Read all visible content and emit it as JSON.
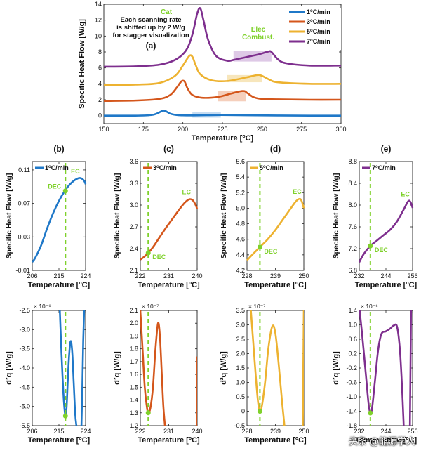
{
  "colors": {
    "blue": "#1f78c8",
    "red": "#d4561b",
    "yellow": "#edb230",
    "purple": "#7e2f8e",
    "green": "#7fd12b",
    "blue_fill": "#bcd6ef",
    "red_fill": "#f3c7b0",
    "yellow_fill": "#f6e2b0",
    "purple_fill": "#d8c0e2"
  },
  "watermark": "头条 @能源学人",
  "chart_data": [
    {
      "id": "a",
      "type": "line",
      "panel_label": "(a)",
      "xlabel": "Temperature [°C]",
      "ylabel": "Specific Heat Flow [W/g]",
      "xlim": [
        150,
        300
      ],
      "ylim": [
        -1,
        14
      ],
      "xticks": [
        150,
        175,
        200,
        225,
        250,
        275,
        300
      ],
      "yticks": [
        0,
        2,
        4,
        6,
        8,
        10,
        12,
        14
      ],
      "note": "Each scanning rate\nis shifted up by 2 W/g\nfor stagger visualization",
      "annotations": [
        "Cat",
        "Elec\nCombust."
      ],
      "legend": [
        "1°C/min",
        "3°C/min",
        "5°C/min",
        "7°C/min"
      ],
      "shaded_regions": [
        {
          "series": "1°C/min",
          "x": [
            206,
            224
          ],
          "y": [
            -0.25,
            0.45
          ]
        },
        {
          "series": "3°C/min",
          "x": [
            222,
            240
          ],
          "y": [
            1.8,
            3.1
          ]
        },
        {
          "series": "5°C/min",
          "x": [
            228,
            250
          ],
          "y": [
            4.2,
            5.1
          ]
        },
        {
          "series": "7°C/min",
          "x": [
            232,
            256
          ],
          "y": [
            6.8,
            8.1
          ]
        }
      ],
      "series": [
        {
          "name": "1°C/min",
          "x": [
            150,
            170,
            180,
            184,
            187,
            189,
            192,
            196,
            200,
            206,
            215,
            224,
            240,
            260,
            280,
            300
          ],
          "y": [
            0.0,
            0.0,
            0.08,
            0.3,
            0.6,
            0.58,
            0.25,
            0.08,
            0.04,
            0.03,
            0.06,
            0.08,
            0.05,
            0.02,
            0.0,
            0.0
          ]
        },
        {
          "name": "3°C/min",
          "x": [
            150,
            170,
            185,
            192,
            196,
            199,
            201,
            203,
            206,
            212,
            222,
            230,
            236,
            239,
            241,
            245,
            250,
            260,
            280,
            300
          ],
          "y": [
            1.85,
            1.9,
            2.1,
            2.6,
            3.5,
            4.3,
            4.3,
            3.4,
            2.6,
            2.25,
            2.35,
            2.75,
            3.05,
            3.08,
            2.8,
            2.3,
            2.1,
            2.05,
            2.0,
            2.0
          ]
        },
        {
          "name": "5°C/min",
          "x": [
            150,
            170,
            185,
            195,
            200,
            204,
            206,
            208,
            211,
            218,
            228,
            240,
            247,
            250,
            255,
            260,
            280,
            300
          ],
          "y": [
            3.85,
            3.9,
            4.1,
            5.0,
            6.3,
            7.5,
            7.4,
            6.4,
            5.2,
            4.45,
            4.35,
            4.8,
            5.1,
            5.0,
            4.5,
            4.2,
            4.0,
            4.0
          ]
        },
        {
          "name": "7°C/min",
          "x": [
            150,
            170,
            185,
            195,
            202,
            206,
            209,
            211,
            213,
            216,
            221,
            228,
            232,
            240,
            248,
            254,
            256,
            260,
            265,
            280,
            300
          ],
          "y": [
            6.15,
            6.2,
            6.4,
            7.0,
            8.2,
            10.2,
            12.8,
            13.5,
            12.0,
            9.5,
            7.5,
            6.9,
            7.0,
            7.35,
            7.7,
            8.05,
            8.0,
            7.1,
            6.6,
            6.3,
            6.3
          ]
        }
      ]
    },
    {
      "id": "b",
      "type": "line",
      "panel_label": "(b)",
      "xlabel": "Temperature [°C]",
      "ylabel": "Specific Heat Flow [W/g]",
      "xlim": [
        206,
        224
      ],
      "ylim": [
        -0.01,
        0.12
      ],
      "xticks": [
        206,
        215,
        224
      ],
      "yticks": [
        -0.01,
        0.03,
        0.07,
        0.11
      ],
      "legend": [
        "1°C/min"
      ],
      "dec_x": 217.2,
      "labels": {
        "dec": "DEC",
        "ec": "EC"
      },
      "series": [
        {
          "name": "1°C/min",
          "x": [
            206,
            207,
            209,
            211,
            213,
            215,
            217,
            218.5,
            220,
            221.5,
            222.5,
            223.5,
            224
          ],
          "y": [
            0.0,
            0.005,
            0.02,
            0.04,
            0.058,
            0.073,
            0.085,
            0.092,
            0.097,
            0.1,
            0.1,
            0.097,
            0.093
          ]
        }
      ],
      "dec_y": 0.085
    },
    {
      "id": "c",
      "type": "line",
      "panel_label": "(c)",
      "xlabel": "Temperature [°C]",
      "ylabel": "Specific Heat Flow [W/g]",
      "xlim": [
        222,
        240
      ],
      "ylim": [
        2.1,
        3.6
      ],
      "xticks": [
        222,
        231,
        240
      ],
      "yticks": [
        2.1,
        2.4,
        2.7,
        3.0,
        3.3,
        3.6
      ],
      "legend": [
        "3°C/min"
      ],
      "dec_x": 224.5,
      "labels": {
        "dec": "DEC",
        "ec": "EC"
      },
      "series": [
        {
          "name": "3°C/min",
          "x": [
            222,
            223,
            224.5,
            226,
            228,
            230,
            232,
            234,
            236,
            237.5,
            238.5,
            239.3,
            240
          ],
          "y": [
            2.25,
            2.28,
            2.34,
            2.42,
            2.55,
            2.68,
            2.8,
            2.92,
            3.03,
            3.08,
            3.07,
            3.02,
            2.95
          ]
        }
      ],
      "dec_y": 2.34
    },
    {
      "id": "d",
      "type": "line",
      "panel_label": "(d)",
      "xlabel": "Temperature [°C]",
      "ylabel": "Specific Heat Flow [W/g]",
      "xlim": [
        228,
        250
      ],
      "ylim": [
        4.2,
        5.6
      ],
      "xticks": [
        228,
        239,
        250
      ],
      "yticks": [
        4.2,
        4.4,
        4.6,
        4.8,
        5.0,
        5.2,
        5.4,
        5.6
      ],
      "legend": [
        "5°C/min"
      ],
      "dec_x": 233,
      "labels": {
        "dec": "DEC",
        "ec": "EC"
      },
      "series": [
        {
          "name": "5°C/min",
          "x": [
            228,
            230,
            233,
            236,
            239,
            242,
            245,
            247,
            248.5,
            249.3,
            250
          ],
          "y": [
            4.33,
            4.4,
            4.5,
            4.6,
            4.72,
            4.86,
            5.0,
            5.09,
            5.12,
            5.08,
            5.0
          ]
        }
      ],
      "dec_y": 4.5
    },
    {
      "id": "e",
      "type": "line",
      "panel_label": "(e)",
      "xlabel": "Temperature [°C]",
      "ylabel": "Specific Heat Flow [W/g]",
      "xlim": [
        232,
        256
      ],
      "ylim": [
        6.8,
        8.8
      ],
      "xticks": [
        232,
        244,
        256
      ],
      "yticks": [
        6.8,
        7.2,
        7.6,
        8.0,
        8.4,
        8.8
      ],
      "legend": [
        "7°C/min"
      ],
      "dec_x": 237,
      "labels": {
        "dec": "DEC",
        "ec": "EC"
      },
      "series": [
        {
          "name": "7°C/min",
          "x": [
            232,
            234,
            237,
            240,
            243,
            246,
            249,
            252,
            254,
            255,
            256
          ],
          "y": [
            6.95,
            7.1,
            7.25,
            7.35,
            7.45,
            7.55,
            7.7,
            7.92,
            8.07,
            8.06,
            7.95
          ]
        }
      ],
      "dec_y": 7.25
    },
    {
      "id": "b2",
      "type": "line",
      "xlabel": "Temperature [°C]",
      "ylabel": "d²q [W/g]",
      "exponent": "× 10⁻⁹",
      "xlim": [
        206,
        224
      ],
      "ylim": [
        -5.5,
        -2.5
      ],
      "xticks": [
        206,
        215,
        224
      ],
      "yticks": [
        -5.5,
        -5.0,
        -4.5,
        -4.0,
        -3.5,
        -3.0,
        -2.5
      ],
      "dec_x": 217.2,
      "dec_y": -5.25,
      "series": [
        {
          "name": "1°C/min",
          "segments": [
            {
              "x": [
                215.3,
                215.7,
                216.2,
                216.7,
                217.2,
                217.6,
                218.0,
                218.5,
                219.0,
                219.5,
                220.0,
                220.5,
                220.9
              ],
              "y": [
                -2.5,
                -3.3,
                -4.2,
                -4.9,
                -5.25,
                -5.0,
                -4.3,
                -3.6,
                -3.3,
                -3.6,
                -4.4,
                -5.2,
                -5.5
              ]
            },
            {
              "x": [
                222.6,
                222.9,
                223.2,
                223.5
              ],
              "y": [
                -5.5,
                -4.5,
                -3.3,
                -2.5
              ]
            }
          ]
        }
      ]
    },
    {
      "id": "c2",
      "type": "line",
      "xlabel": "Temperature [°C]",
      "ylabel": "d²q [W/g]",
      "exponent": "× 10⁻⁷",
      "xlim": [
        222,
        240
      ],
      "ylim": [
        1.2,
        2.1
      ],
      "xticks": [
        222,
        231,
        240
      ],
      "yticks": [
        1.2,
        1.3,
        1.4,
        1.5,
        1.6,
        1.7,
        1.8,
        1.9,
        2.0,
        2.1
      ],
      "dec_x": 224.5,
      "dec_y": 1.3,
      "series": [
        {
          "name": "3°C/min",
          "segments": [
            {
              "x": [
                222.0,
                222.7,
                223.4,
                224.0,
                224.5,
                225.2,
                226.0,
                226.8,
                227.6,
                228.2,
                228.8,
                229.3,
                229.8
              ],
              "y": [
                2.1,
                1.8,
                1.5,
                1.36,
                1.3,
                1.34,
                1.5,
                1.8,
                2.0,
                1.9,
                1.6,
                1.35,
                1.2
              ]
            },
            {
              "x": [
                239.9,
                240.0
              ],
              "y": [
                1.2,
                1.74
              ]
            }
          ]
        }
      ]
    },
    {
      "id": "d2",
      "type": "line",
      "xlabel": "Temperature [°C]",
      "ylabel": "d²q [W/g]",
      "exponent": "× 10⁻⁷",
      "xlim": [
        228,
        250
      ],
      "ylim": [
        -0.5,
        3.5
      ],
      "xticks": [
        228,
        239,
        250
      ],
      "yticks": [
        -0.5,
        0,
        0.5,
        1.0,
        1.5,
        2.0,
        2.5,
        3.0,
        3.5
      ],
      "dec_x": 233,
      "dec_y": 0.0,
      "series": [
        {
          "name": "5°C/min",
          "segments": [
            {
              "x": [
                229.5,
                230.5,
                231.5,
                232.3,
                233.0,
                233.8,
                235.0,
                236.3,
                237.8,
                239.0,
                240.3,
                241.5,
                242.5
              ],
              "y": [
                3.5,
                2.3,
                1.1,
                0.3,
                0.0,
                0.2,
                1.0,
                2.2,
                2.95,
                2.7,
                1.6,
                0.4,
                -0.5
              ]
            },
            {
              "x": [
                249.6,
                250.0
              ],
              "y": [
                -0.5,
                3.5
              ]
            }
          ]
        }
      ]
    },
    {
      "id": "e2",
      "type": "line",
      "xlabel": "Temperature [°C]",
      "ylabel": "d²q [W/g]",
      "exponent": "× 10⁻⁶",
      "xlim": [
        232,
        256
      ],
      "ylim": [
        -1.8,
        1.4
      ],
      "xticks": [
        232,
        244,
        256
      ],
      "yticks": [
        -1.8,
        -1.4,
        -1.0,
        -0.6,
        -0.2,
        0.2,
        0.6,
        1.0,
        1.4
      ],
      "dec_x": 237,
      "dec_y": -1.45,
      "series": [
        {
          "name": "7°C/min",
          "segments": [
            {
              "x": [
                232.2,
                233.5,
                235.0,
                236.2,
                237.0,
                237.8,
                239.0,
                240.5,
                242.0,
                244.0,
                246.0,
                247.5,
                249.0,
                250.3,
                251.3,
                252.0
              ],
              "y": [
                1.4,
                0.6,
                -0.4,
                -1.2,
                -1.45,
                -1.3,
                -0.6,
                0.3,
                0.75,
                0.82,
                0.9,
                0.98,
                0.95,
                0.3,
                -0.8,
                -1.8
              ]
            },
            {
              "x": [
                254.8,
                255.3
              ],
              "y": [
                -1.8,
                1.4
              ]
            }
          ]
        }
      ]
    }
  ]
}
